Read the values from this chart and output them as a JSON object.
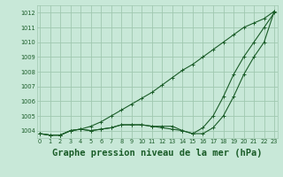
{
  "background_color": "#c8e8d8",
  "grid_color": "#a0c8b0",
  "line_color": "#1a5c28",
  "title": "Graphe pression niveau de la mer (hPa)",
  "title_fontsize": 7.5,
  "title_bg": "#2a7a3a",
  "title_fg": "#1a5c28",
  "ylim": [
    1003.5,
    1012.5
  ],
  "xlim": [
    -0.3,
    23.3
  ],
  "yticks": [
    1004,
    1005,
    1006,
    1007,
    1008,
    1009,
    1010,
    1011,
    1012
  ],
  "xticks": [
    0,
    1,
    2,
    3,
    4,
    5,
    6,
    7,
    8,
    9,
    10,
    11,
    12,
    13,
    14,
    15,
    16,
    17,
    18,
    19,
    20,
    21,
    22,
    23
  ],
  "series": [
    [
      1003.8,
      1003.7,
      1003.7,
      1004.0,
      1004.1,
      1004.3,
      1004.6,
      1005.0,
      1005.4,
      1005.8,
      1006.2,
      1006.6,
      1007.1,
      1007.6,
      1008.1,
      1008.5,
      1009.0,
      1009.5,
      1010.0,
      1010.5,
      1011.0,
      1011.3,
      1011.6,
      1012.1
    ],
    [
      1003.8,
      1003.7,
      1003.7,
      1004.0,
      1004.1,
      1004.0,
      1004.1,
      1004.2,
      1004.4,
      1004.4,
      1004.4,
      1004.3,
      1004.3,
      1004.3,
      1004.0,
      1003.8,
      1003.8,
      1004.2,
      1005.0,
      1006.3,
      1007.8,
      1009.0,
      1010.0,
      1012.1
    ],
    [
      1003.8,
      1003.7,
      1003.7,
      1004.0,
      1004.1,
      1004.0,
      1004.1,
      1004.2,
      1004.4,
      1004.4,
      1004.4,
      1004.3,
      1004.2,
      1004.1,
      1004.0,
      1003.8,
      1004.2,
      1005.0,
      1006.3,
      1007.8,
      1009.0,
      1010.0,
      1011.0,
      1012.0
    ]
  ]
}
